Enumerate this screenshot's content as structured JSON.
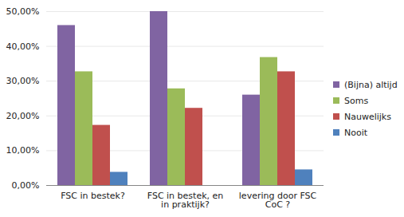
{
  "chart_data": {
    "type": "bar",
    "categories": [
      "FSC in bestek?",
      "FSC in bestek, en in praktijk?",
      "levering door FSC CoC ?"
    ],
    "series": [
      {
        "name": "(Bijna) altijd",
        "color": "#8064A2",
        "values": [
          46,
          50,
          26
        ]
      },
      {
        "name": "Soms",
        "color": "#9BBB59",
        "values": [
          32.7,
          27.8,
          36.8
        ]
      },
      {
        "name": "Nauwelijks",
        "color": "#C0504D",
        "values": [
          17.3,
          22.2,
          32.7
        ]
      },
      {
        "name": "Nooit",
        "color": "#4F81BD",
        "values": [
          3.8,
          0,
          4.5
        ]
      }
    ],
    "ylim": [
      0,
      50
    ],
    "yticks": [
      {
        "value": 0,
        "label": "0,00%"
      },
      {
        "value": 10,
        "label": "10,00%"
      },
      {
        "value": 20,
        "label": "20,00%"
      },
      {
        "value": 30,
        "label": "30,00%"
      },
      {
        "value": 40,
        "label": "40,00%"
      },
      {
        "value": 50,
        "label": "50,00%"
      }
    ],
    "grid": true,
    "legend": "right"
  }
}
